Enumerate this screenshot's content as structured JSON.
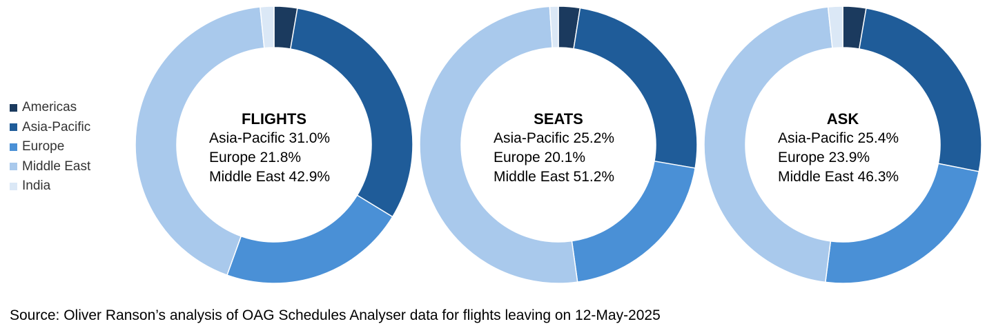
{
  "colors": {
    "Americas": "#1b3a5e",
    "Asia-Pacific": "#1f5c99",
    "Europe": "#4a90d6",
    "Middle East": "#a9c9ec",
    "India": "#dbe8f6"
  },
  "legend": [
    "Americas",
    "Asia-Pacific",
    "Europe",
    "Middle East",
    "India"
  ],
  "chart_data": [
    {
      "type": "pie",
      "title": "FLIGHTS",
      "categories": [
        "Americas",
        "Asia-Pacific",
        "Europe",
        "Middle East",
        "India"
      ],
      "values": [
        2.7,
        31.0,
        21.8,
        42.9,
        1.6
      ],
      "center_lines": [
        "Asia-Pacific 31.0%",
        "Europe 21.8%",
        "Middle East 42.9%"
      ]
    },
    {
      "type": "pie",
      "title": "SEATS",
      "categories": [
        "Americas",
        "Asia-Pacific",
        "Europe",
        "Middle East",
        "India"
      ],
      "values": [
        2.5,
        25.2,
        20.1,
        51.2,
        1.0
      ],
      "center_lines": [
        "Asia-Pacific 25.2%",
        "Europe 20.1%",
        "Middle East 51.2%"
      ]
    },
    {
      "type": "pie",
      "title": "ASK",
      "categories": [
        "Americas",
        "Asia-Pacific",
        "Europe",
        "Middle East",
        "India"
      ],
      "values": [
        2.7,
        25.4,
        23.9,
        46.3,
        1.7
      ],
      "center_lines": [
        "Asia-Pacific 25.4%",
        "Europe 23.9%",
        "Middle East 46.3%"
      ]
    }
  ],
  "source": "Source: Oliver Ranson’s analysis of OAG Schedules Analyser data for flights leaving on 12-May-2025"
}
